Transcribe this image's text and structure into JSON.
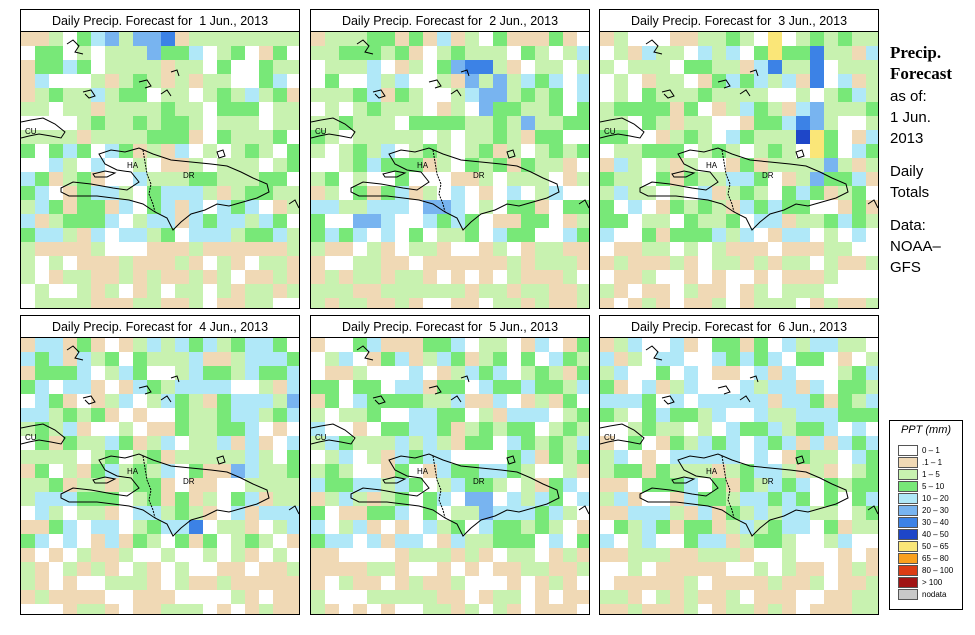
{
  "panels": [
    {
      "title": "Daily Precip. Forecast for  1 Jun., 2013",
      "seed": 11
    },
    {
      "title": "Daily Precip. Forecast for  2 Jun., 2013",
      "seed": 23
    },
    {
      "title": "Daily Precip. Forecast for  3 Jun., 2013",
      "seed": 37
    },
    {
      "title": "Daily Precip. Forecast for  4 Jun., 2013",
      "seed": 41
    },
    {
      "title": "Daily Precip. Forecast for  5 Jun., 2013",
      "seed": 53
    },
    {
      "title": "Daily Precip. Forecast for  6 Jun., 2013",
      "seed": 67
    }
  ],
  "map_labels": {
    "cu": "CU",
    "ha": "HA",
    "dr": "DR"
  },
  "side": {
    "title_line1": "Precip.",
    "title_line2": "Forecast",
    "asof": "as of:",
    "date_line1": "1 Jun.",
    "date_line2": "2013",
    "daily_line1": "Daily",
    "daily_line2": "Totals",
    "data_line1": "Data:",
    "data_line2": "NOAA–",
    "data_line3": "GFS"
  },
  "legend": {
    "title": "PPT (mm)",
    "items": [
      {
        "label": "0 – 1",
        "color": "#ffffff"
      },
      {
        "label": ".1 – 1",
        "color": "#f0d9b5"
      },
      {
        "label": "1 – 5",
        "color": "#c8f2b0"
      },
      {
        "label": "5 – 10",
        "color": "#78e878"
      },
      {
        "label": "10 – 20",
        "color": "#b0e8f8"
      },
      {
        "label": "20 – 30",
        "color": "#78b4f0"
      },
      {
        "label": "30 – 40",
        "color": "#3c82e6"
      },
      {
        "label": "40 – 50",
        "color": "#1e46c8"
      },
      {
        "label": "50 – 65",
        "color": "#fae678"
      },
      {
        "label": "65 – 80",
        "color": "#faa01e"
      },
      {
        "label": "80 – 100",
        "color": "#dc3c14"
      },
      {
        "label": "> 100",
        "color": "#a01414"
      },
      {
        "label": "nodata",
        "color": "#c8c8c8"
      }
    ]
  }
}
